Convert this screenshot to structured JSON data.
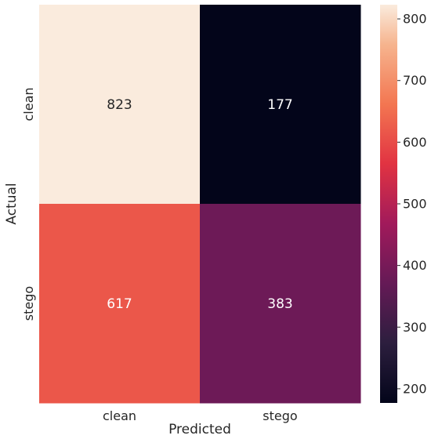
{
  "chart_data": {
    "type": "heatmap",
    "title": "",
    "xlabel": "Predicted",
    "ylabel": "Actual",
    "x_categories": [
      "clean",
      "stego"
    ],
    "y_categories": [
      "clean",
      "stego"
    ],
    "values": [
      [
        823,
        177
      ],
      [
        617,
        383
      ]
    ],
    "colorbar": {
      "range": [
        177,
        823
      ],
      "ticks": [
        200,
        300,
        400,
        500,
        600,
        700,
        800
      ],
      "colormap": "rocket"
    },
    "grid": false
  }
}
